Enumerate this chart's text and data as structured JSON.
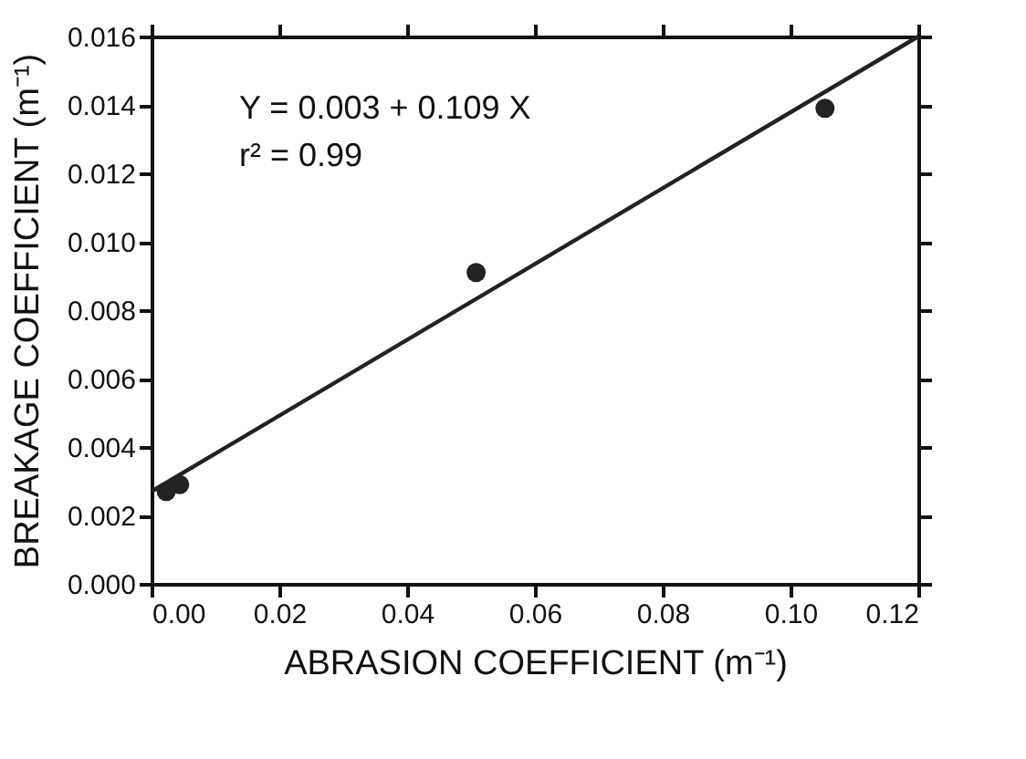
{
  "chart_data": {
    "type": "scatter",
    "xlabel": "ABRASION COEFFICIENT (m⁻¹)",
    "ylabel": "BREAKAGE COEFFICIENT (m⁻¹)",
    "xlim": [
      0,
      0.12
    ],
    "xticks": [
      {
        "value": 0,
        "label": "0.00"
      },
      {
        "value": 0.02,
        "label": "0.02"
      },
      {
        "value": 0.04,
        "label": "0.04"
      },
      {
        "value": 0.06,
        "label": "0.06"
      },
      {
        "value": 0.08,
        "label": "0.08"
      },
      {
        "value": 0.1,
        "label": "0.10"
      },
      {
        "value": 0.12,
        "label": "0.12"
      }
    ],
    "ylim": [
      0,
      0.016
    ],
    "yticks": [
      {
        "value": 0,
        "label": "0.000"
      },
      {
        "value": 0.002,
        "label": "0.002"
      },
      {
        "value": 0.004,
        "label": "0.004"
      },
      {
        "value": 0.006,
        "label": "0.006"
      },
      {
        "value": 0.008,
        "label": "0.008"
      },
      {
        "value": 0.01,
        "label": "0.010"
      },
      {
        "value": 0.012,
        "label": "0.012"
      },
      {
        "value": 0.014,
        "label": "0.014"
      },
      {
        "value": 0.016,
        "label": "0.016"
      }
    ],
    "series": [
      {
        "type": "scatter",
        "color": "#222222",
        "marker": "circle",
        "x": [
          0.0023,
          0.0044,
          0.0508,
          0.1054
        ],
        "values": [
          0.0027,
          0.0029,
          0.0091,
          0.0139
        ]
      },
      {
        "type": "line",
        "color": "#222222",
        "line_style": "solid",
        "marker": "none",
        "x": [
          0,
          0.12
        ],
        "values": [
          0.0027,
          0.016
        ]
      }
    ],
    "annotations": [
      "Y = 0.003 + 0.109 X",
      "r² = 0.99"
    ],
    "grid": false,
    "legend": false
  }
}
